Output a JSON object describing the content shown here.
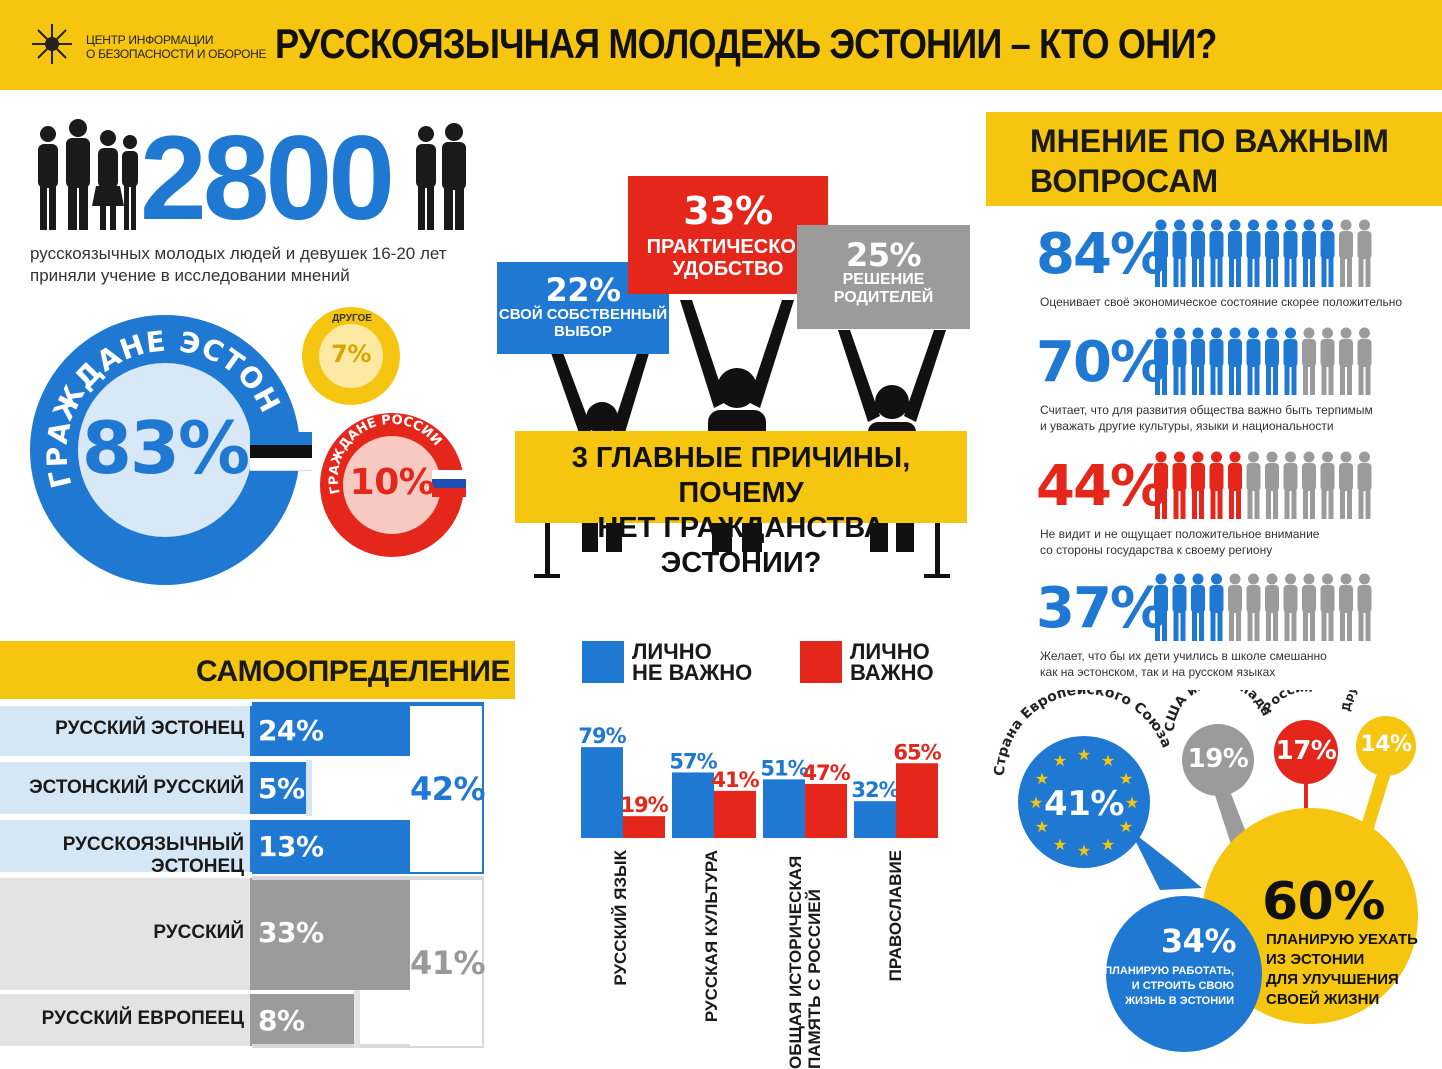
{
  "header": {
    "org_line1": "ЦЕНТР ИНФОРМАЦИИ",
    "org_line2": "О БЕЗОПАСНОСТИ И ОБОРОНЕ",
    "title": "РУССКОЯЗЫЧНАЯ МОЛОДЕЖЬ ЭСТОНИИ – КТО ОНИ?",
    "accent_yellow": "#f6c510"
  },
  "sample": {
    "number": "2800",
    "desc_line1": "русскоязычных молодых людей и девушек 16-20 лет",
    "desc_line2": "приняли учение в исследовании мнений"
  },
  "citizenship": {
    "estonia_label": "ГРАЖДАНЕ ЭСТОНИИ",
    "estonia_value": "83%",
    "russia_label": "ГРАЖДАНЕ РОССИИ",
    "russia_value": "10%",
    "other_label": "ДРУГОЕ",
    "other_value": "7%"
  },
  "reasons": {
    "title_line1": "3 ГЛАВНЫЕ ПРИЧИНЫ, ПОЧЕМУ",
    "title_line2": "НЕТ ГРАЖДАНСТВА ЭСТОНИИ?",
    "items": [
      {
        "pct": "22%",
        "line1": "СВОЙ СОБСТВЕННЫЙ",
        "line2": "ВЫБОР"
      },
      {
        "pct": "33%",
        "line1": "ПРАКТИЧЕСКОЕ",
        "line2": "УДОБСТВО"
      },
      {
        "pct": "25%",
        "line1": "РЕШЕНИЕ",
        "line2": "РОДИТЕЛЕЙ"
      }
    ]
  },
  "self_determination": {
    "title": "САМООПРЕДЕЛЕНИЕ",
    "rows": [
      {
        "label": "РУССКИЙ ЭСТОНЕЦ",
        "value": "24%"
      },
      {
        "label": "ЭСТОНСКИЙ РУССКИЙ",
        "value": "5%"
      },
      {
        "label": "РУССКОЯЗЫЧНЫЙ ЭСТОНЕЦ",
        "value": "13%"
      },
      {
        "label": "РУССКИЙ",
        "value": "33%"
      },
      {
        "label": "РУССКИЙ ЕВРОПЕЕЦ",
        "value": "8%"
      }
    ],
    "sum_blue": "42%",
    "sum_grey": "41%"
  },
  "importance": {
    "legend_not_important_1": "ЛИЧНО",
    "legend_not_important_2": "НЕ ВАЖНО",
    "legend_important_1": "ЛИЧНО",
    "legend_important_2": "ВАЖНО",
    "color_not_important": "#1f78d1",
    "color_important": "#e4261b",
    "cat_1": "РУССКИЙ ЯЗЫК",
    "cat_2": "РУССКАЯ КУЛЬТУРА",
    "cat_3a": "ОБЩАЯ ИСТОРИЧЕСКАЯ",
    "cat_3b": "ПАМЯТЬ С РОССИЕЙ",
    "cat_4": "ПРАВОСЛАВИЕ"
  },
  "chart_data": {
    "type": "bar",
    "categories": [
      "РУССКИЙ ЯЗЫК",
      "РУССКАЯ КУЛЬТУРА",
      "ОБЩАЯ ИСТОРИЧЕСКАЯ ПАМЯТЬ С РОССИЕЙ",
      "ПРАВОСЛАВИЕ"
    ],
    "series": [
      {
        "name": "ЛИЧНО НЕ ВАЖНО",
        "values": [
          79,
          57,
          51,
          32
        ]
      },
      {
        "name": "ЛИЧНО ВАЖНО",
        "values": [
          19,
          41,
          47,
          65
        ]
      }
    ],
    "ylim": [
      0,
      100
    ]
  },
  "opinions": {
    "title_line1": "МНЕНИЕ ПО ВАЖНЫМ",
    "title_line2": "ВОПРОСАМ",
    "items": [
      {
        "pct": "84%",
        "value": 84,
        "color": "#1f78d1",
        "line1": "Оценивает своё экономическое состояние скорее положительно",
        "line2": ""
      },
      {
        "pct": "70%",
        "value": 70,
        "color": "#1f78d1",
        "line1": "Считает, что для развития общества важно быть терпимым",
        "line2": "и уважать другие культуры, языки и национальности"
      },
      {
        "pct": "44%",
        "value": 44,
        "color": "#e4261b",
        "line1": "Не видит и не ощущает положительное внимание",
        "line2": "со стороны государства к своему региону"
      },
      {
        "pct": "37%",
        "value": 37,
        "color": "#1f78d1",
        "line1": "Желает, что бы их дети учились в школе смешанно",
        "line2": "как на эстонском, так и на русском языках"
      }
    ]
  },
  "emigration": {
    "eu_label": "Страна Европейского Союза",
    "eu_value": "41%",
    "usa_label": "США или Канада",
    "usa_value": "19%",
    "russia_label": "Россия",
    "russia_value": "17%",
    "other_label": "Другая страна",
    "other_value": "14%",
    "leave_value": "60%",
    "leave_l1": "ПЛАНИРУЮ УЕХАТЬ",
    "leave_l2": "ИЗ ЭСТОНИИ",
    "leave_l3": "ДЛЯ УЛУЧШЕНИЯ",
    "leave_l4": "СВОЕЙ ЖИЗНИ",
    "stay_value": "34%",
    "stay_l1": "ПЛАНИРУЮ РАБОТАТЬ,",
    "stay_l2": "И СТРОИТЬ СВОЮ",
    "stay_l3": "ЖИЗНЬ В ЭСТОНИИ"
  }
}
